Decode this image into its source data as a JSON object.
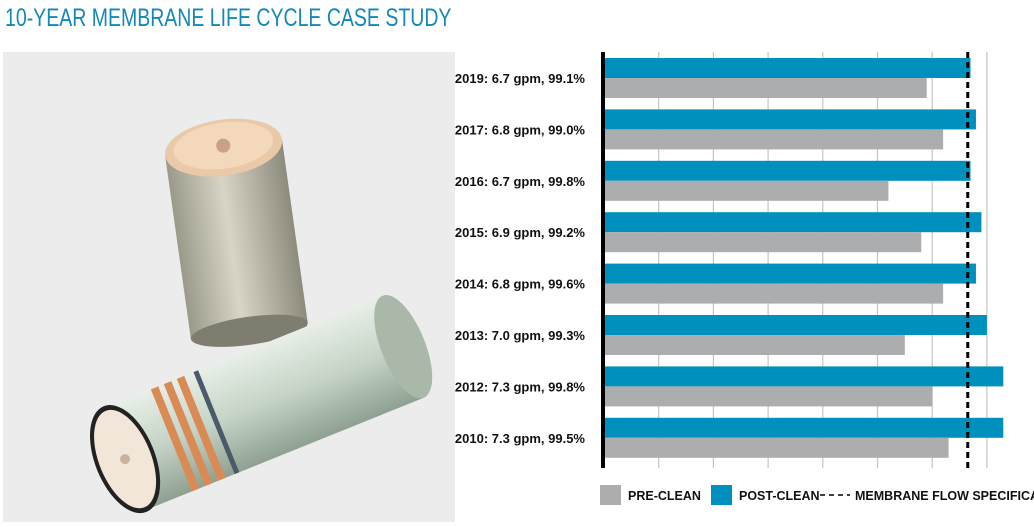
{
  "title": "10-YEAR MEMBRANE LIFE CYCLE CASE STUDY",
  "chart_data": {
    "type": "bar",
    "orientation": "horizontal",
    "categories": [
      "2019: 6.7 gpm, 99.1%",
      "2017: 6.8 gpm, 99.0%",
      "2016: 6.7 gpm, 99.8%",
      "2015: 6.9 gpm, 99.2%",
      "2014: 6.8 gpm, 99.6%",
      "2013: 7.0 gpm, 99.3%",
      "2012: 7.3 gpm, 99.8%",
      "2010: 7.3 gpm, 99.5%"
    ],
    "series": [
      {
        "name": "POST-CLEAN",
        "color": "#0090bd",
        "values": [
          6.7,
          6.8,
          6.7,
          6.9,
          6.8,
          7.0,
          7.3,
          7.3
        ]
      },
      {
        "name": "PRE-CLEAN",
        "color": "#acadae",
        "values": [
          5.9,
          6.2,
          5.2,
          5.8,
          6.2,
          5.5,
          6.0,
          6.3
        ]
      }
    ],
    "reference_line": {
      "name": "MEMBRANE FLOW SPECIFICATION",
      "value": 6.65,
      "style": "dashed"
    },
    "xlabel": "",
    "ylabel": "",
    "xlim": [
      0,
      7.5
    ],
    "grid": true,
    "grid_step": 1,
    "legend_placement": "bottom"
  }
}
